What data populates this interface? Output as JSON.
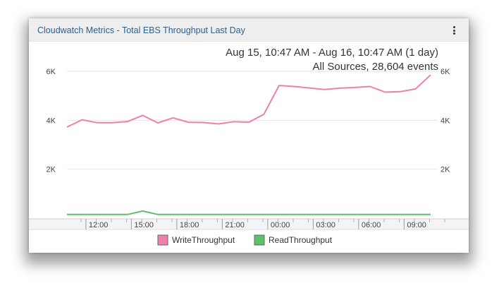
{
  "panel": {
    "title": "Cloudwatch Metrics - Total EBS Throughput Last Day",
    "menu_icon": "kebab-vertical-icon"
  },
  "summary": {
    "time_range": "Aug 15, 10:47 AM - Aug 16, 10:47 AM  (1 day)",
    "sources": "All Sources, 28,604 events"
  },
  "chart_data": {
    "type": "line",
    "title": "",
    "xlabel": "",
    "ylabel": "",
    "x_ticks": [
      "12:00",
      "15:00",
      "18:00",
      "21:00",
      "00:00",
      "03:00",
      "06:00",
      "09:00"
    ],
    "y_ticks": [
      "2K",
      "4K",
      "6K"
    ],
    "y_tick_values": [
      2000,
      4000,
      6000
    ],
    "ylim": [
      0,
      6000
    ],
    "xlim": [
      0,
      24
    ],
    "grid": true,
    "legend": "bottom",
    "series": [
      {
        "name": "WriteThroughput",
        "color": "#ef7fac",
        "x": [
          0,
          1,
          2,
          3,
          4,
          5,
          6,
          7,
          8,
          9,
          10,
          11,
          12,
          13,
          14,
          15,
          16,
          17,
          18,
          19,
          20,
          21,
          22,
          23,
          24
        ],
        "values": [
          3720,
          4020,
          3900,
          3900,
          3950,
          4200,
          3890,
          4100,
          3920,
          3910,
          3850,
          3940,
          3920,
          4250,
          5420,
          5380,
          5320,
          5260,
          5310,
          5340,
          5380,
          5150,
          5170,
          5280,
          5850
        ]
      },
      {
        "name": "ReadThroughput",
        "color": "#5cc06a",
        "x": [
          0,
          1,
          2,
          3,
          4,
          5,
          6,
          7,
          8,
          9,
          10,
          11,
          12,
          13,
          14,
          15,
          16,
          17,
          18,
          19,
          20,
          21,
          22,
          23,
          24
        ],
        "values": [
          150,
          150,
          150,
          150,
          150,
          290,
          150,
          150,
          150,
          150,
          150,
          150,
          150,
          150,
          150,
          150,
          150,
          150,
          150,
          150,
          150,
          150,
          150,
          150,
          150
        ]
      }
    ]
  }
}
